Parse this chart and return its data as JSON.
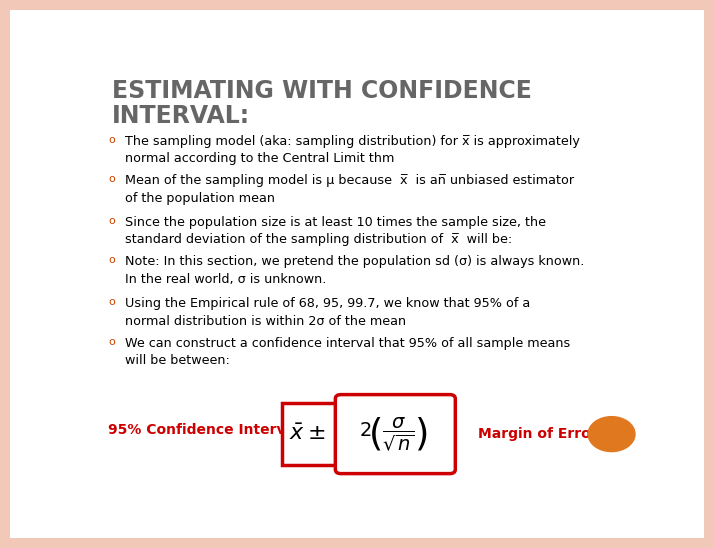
{
  "title_line1": "ESTIMATING WITH CONFIDENCE",
  "title_line2": "INTERVAL:",
  "title_color": "#666666",
  "background_color": "#F2C9B8",
  "slide_bg": "#FFFFFF",
  "bullet_color": "#CC4400",
  "bullet_char": "o",
  "bullets": [
    "The sampling model (aka: sampling distribution) for x̅ is approximately\nnormal according to the Central Limit thm",
    "Mean of the sampling model is μ because  x̅  is an̅ unbiased estimator\nof the population mean",
    "Since the population size is at least 10 times the sample size, the\nstandard deviation of the sampling distribution of  x̅  will be:",
    "Note: In this section, we pretend the population sd (σ) is always known.\nIn the real world, σ is unknown.",
    "Using the Empirical rule of 68, 95, 99.7, we know that 95% of a\nnormal distribution is within 2σ of the mean",
    "We can construct a confidence interval that 95% of all sample means\nwill be between:"
  ],
  "footer_ci_label": "95% Confidence Interval",
  "footer_ci_color": "#CC0000",
  "footer_margin_label": "Margin of Error",
  "footer_margin_color": "#CC0000",
  "margin_circle_color": "#E07820",
  "outer_box_color": "#CC0000",
  "inner_box_color": "#CC0000"
}
